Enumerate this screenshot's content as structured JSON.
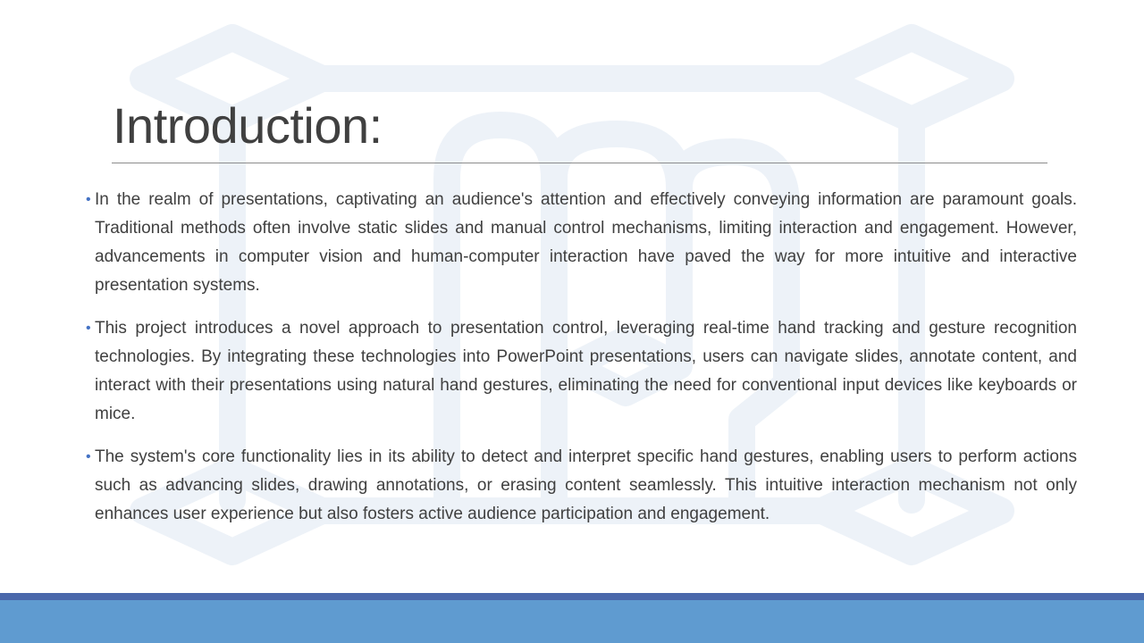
{
  "slide": {
    "title": "Introduction:",
    "bullets": [
      "In the realm of presentations, captivating an audience's attention and effectively conveying information are paramount goals. Traditional methods often involve static slides and manual control mechanisms, limiting interaction and engagement. However, advancements in computer vision and human-computer interaction have paved the way for more intuitive and interactive presentation systems.",
      "This project introduces a novel approach to presentation control, leveraging real-time hand tracking and gesture recognition technologies. By integrating these technologies into PowerPoint presentations, users can navigate slides, annotate content, and interact with their presentations using natural hand gestures, eliminating the need for conventional input devices like keyboards or mice.",
      "The system's core functionality lies in its ability to detect and interpret specific hand gestures, enabling users to perform actions such as advancing slides, drawing annotations, or erasing content seamlessly. This intuitive interaction mechanism not only enhances user experience but also fosters active audience participation and engagement."
    ],
    "bullet_glyph": "•"
  },
  "colors": {
    "title_text": "#404040",
    "body_text": "#404040",
    "bullet": "#4472c4",
    "watermark": "#edf2f8",
    "footer_line": "#4a68ab",
    "footer_band": "#5f9bd0"
  },
  "icons": {
    "watermark": "watermark-logo-icon"
  }
}
